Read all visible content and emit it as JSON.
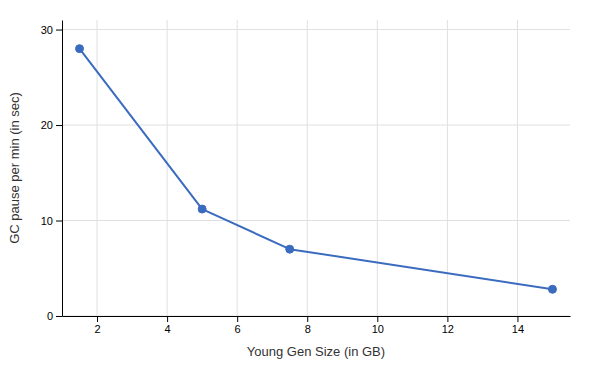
{
  "chart_data": {
    "type": "line",
    "x": [
      1.5,
      5,
      7.5,
      15
    ],
    "values": [
      28,
      11.2,
      7.0,
      2.8
    ],
    "color": "#3a6bbf",
    "marker": "circle",
    "xlabel": "Young Gen Size (in GB)",
    "ylabel": "GC pause per min (in sec)",
    "xlim": [
      1,
      15.5
    ],
    "ylim": [
      0,
      31
    ],
    "xticks": [
      2,
      4,
      6,
      8,
      10,
      12,
      14
    ],
    "yticks": [
      0,
      10,
      20,
      30
    ],
    "grid": true
  }
}
